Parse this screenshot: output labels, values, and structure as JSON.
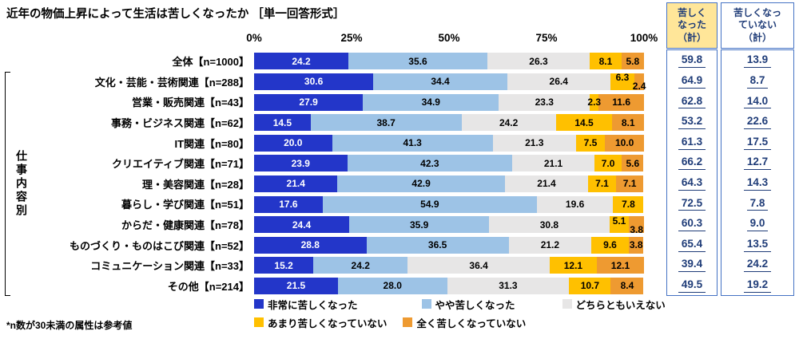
{
  "title": "近年の物価上昇によって生活は苦しくなったか ［単一回答形式］",
  "footnote": "*n数が30未満の属性は参考値",
  "axis_group_label": "仕事内容別",
  "colors": {
    "series": [
      "#2336C9",
      "#9DC3E6",
      "#E7E6E6",
      "#FFC000",
      "#EE9A31"
    ],
    "summary_hard_bg": "#FFE699",
    "summary_not_hard_bg": "#FFFFFF",
    "table_border": "#4472C4",
    "navy": "#1F3C78"
  },
  "summary_columns": [
    {
      "name": "苦しくなった（計）",
      "lines": [
        "苦しく",
        "なった",
        "（計）"
      ]
    },
    {
      "name": "苦しくなっていない（計）",
      "lines": [
        "苦しくなっ",
        "ていない",
        "（計）"
      ]
    }
  ],
  "legend": [
    "非常に苦しくなった",
    "やや苦しくなった",
    "どちらともいえない",
    "あまり苦しくなっていない",
    "全く苦しくなっていない"
  ],
  "chart_data": {
    "type": "bar",
    "stacked": true,
    "horizontal": true,
    "unit": "%",
    "xlim": [
      0,
      100
    ],
    "x_ticks": [
      "0%",
      "25%",
      "50%",
      "75%",
      "100%"
    ],
    "series": [
      "非常に苦しくなった",
      "やや苦しくなった",
      "どちらともいえない",
      "あまり苦しくなっていない",
      "全く苦しくなっていない"
    ],
    "rows": [
      {
        "label": "全体【n=1000】",
        "values": [
          24.2,
          35.6,
          26.3,
          8.1,
          5.8
        ],
        "hard_total": 59.8,
        "not_hard_total": 13.9,
        "in_group": false
      },
      {
        "label": "文化・芸能・芸術関連【n=288】",
        "values": [
          30.6,
          34.4,
          26.4,
          6.3,
          2.4
        ],
        "hard_total": 64.9,
        "not_hard_total": 8.7,
        "in_group": true
      },
      {
        "label": "営業・販売関連【n=43】",
        "values": [
          27.9,
          34.9,
          23.3,
          2.3,
          11.6
        ],
        "hard_total": 62.8,
        "not_hard_total": 14.0,
        "in_group": true
      },
      {
        "label": "事務・ビジネス関連【n=62】",
        "values": [
          14.5,
          38.7,
          24.2,
          14.5,
          8.1
        ],
        "hard_total": 53.2,
        "not_hard_total": 22.6,
        "in_group": true
      },
      {
        "label": "IT関連【n=80】",
        "values": [
          20.0,
          41.3,
          21.3,
          7.5,
          10.0
        ],
        "hard_total": 61.3,
        "not_hard_total": 17.5,
        "in_group": true
      },
      {
        "label": "クリエイティブ関連【n=71】",
        "values": [
          23.9,
          42.3,
          21.1,
          7.0,
          5.6
        ],
        "hard_total": 66.2,
        "not_hard_total": 12.7,
        "in_group": true
      },
      {
        "label": "理・美容関連【n=28】",
        "values": [
          21.4,
          42.9,
          21.4,
          7.1,
          7.1
        ],
        "hard_total": 64.3,
        "not_hard_total": 14.3,
        "in_group": true
      },
      {
        "label": "暮らし・学び関連【n=51】",
        "values": [
          17.6,
          54.9,
          19.6,
          7.8,
          0.0
        ],
        "hard_total": 72.5,
        "not_hard_total": 7.8,
        "in_group": true
      },
      {
        "label": "からだ・健康関連【n=78】",
        "values": [
          24.4,
          35.9,
          30.8,
          5.1,
          3.8
        ],
        "hard_total": 60.3,
        "not_hard_total": 9.0,
        "in_group": true
      },
      {
        "label": "ものづくり・ものはこび関連【n=52】",
        "values": [
          28.8,
          36.5,
          21.2,
          9.6,
          3.8
        ],
        "hard_total": 65.4,
        "not_hard_total": 13.5,
        "in_group": true
      },
      {
        "label": "コミュニケーション関連【n=33】",
        "values": [
          15.2,
          24.2,
          36.4,
          12.1,
          12.1
        ],
        "hard_total": 39.4,
        "not_hard_total": 24.2,
        "in_group": true
      },
      {
        "label": "その他【n=214】",
        "values": [
          21.5,
          28.0,
          31.3,
          10.7,
          8.4
        ],
        "hard_total": 49.5,
        "not_hard_total": 19.2,
        "in_group": true
      }
    ]
  }
}
